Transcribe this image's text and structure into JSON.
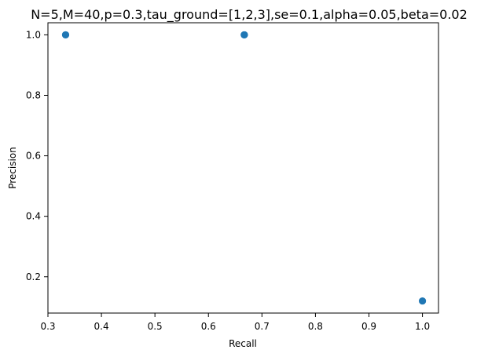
{
  "chart_data": {
    "type": "scatter",
    "title": "N=5,M=40,p=0.3,tau_ground=[1,2,3],se=0.1,alpha=0.05,beta=0.02",
    "xlabel": "Recall",
    "ylabel": "Precision",
    "xlim": [
      0.3,
      1.03
    ],
    "ylim": [
      0.08,
      1.04
    ],
    "xticks": [
      0.3,
      0.4,
      0.5,
      0.6,
      0.7,
      0.8,
      0.9,
      1.0
    ],
    "xtick_labels": [
      "0.3",
      "0.4",
      "0.5",
      "0.6",
      "0.7",
      "0.8",
      "0.9",
      "1.0"
    ],
    "yticks": [
      0.2,
      0.4,
      0.6,
      0.8,
      1.0
    ],
    "ytick_labels": [
      "0.2",
      "0.4",
      "0.6",
      "0.8",
      "1.0"
    ],
    "grid": false,
    "series": [
      {
        "color": "#1f77b4",
        "points": [
          {
            "x": 0.333,
            "y": 1.0
          },
          {
            "x": 0.333,
            "y": 1.0
          },
          {
            "x": 0.667,
            "y": 1.0
          },
          {
            "x": 0.667,
            "y": 1.0
          },
          {
            "x": 0.667,
            "y": 1.0
          },
          {
            "x": 1.0,
            "y": 0.12
          }
        ]
      }
    ]
  }
}
